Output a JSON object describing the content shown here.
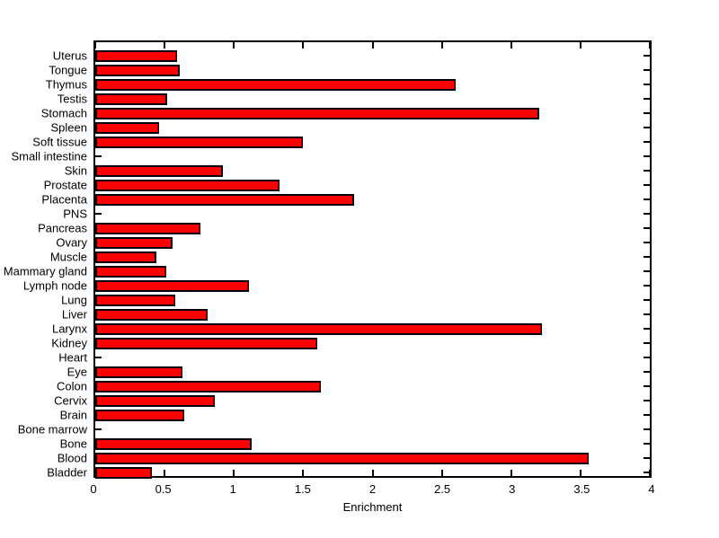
{
  "figure": {
    "background": "#ffffff",
    "bar_fill": "#ff0000",
    "bar_edge": "#000000",
    "axis_color": "#000000",
    "text_color": "#000000"
  },
  "chart_data": {
    "type": "bar",
    "orientation": "horizontal",
    "title": "",
    "xlabel": "Enrichment",
    "ylabel": "",
    "xlim": [
      0,
      4
    ],
    "xtick_values": [
      0,
      0.5,
      1,
      1.5,
      2,
      2.5,
      3,
      3.5,
      4
    ],
    "xtick_labels": [
      "0",
      "0.5",
      "1",
      "1.5",
      "2",
      "2.5",
      "3",
      "3.5",
      "4"
    ],
    "grid": false,
    "legend_position": "none",
    "categories": [
      "Uterus",
      "Tongue",
      "Thymus",
      "Testis",
      "Stomach",
      "Spleen",
      "Soft tissue",
      "Small intestine",
      "Skin",
      "Prostate",
      "Placenta",
      "PNS",
      "Pancreas",
      "Ovary",
      "Muscle",
      "Mammary gland",
      "Lymph node",
      "Lung",
      "Liver",
      "Larynx",
      "Kidney",
      "Heart",
      "Eye",
      "Colon",
      "Cervix",
      "Brain",
      "Bone marrow",
      "Bone",
      "Blood",
      "Bladder"
    ],
    "values": [
      0.59,
      0.61,
      2.6,
      0.52,
      3.2,
      0.46,
      1.5,
      0,
      0.92,
      1.33,
      1.87,
      0,
      0.76,
      0.56,
      0.44,
      0.51,
      1.11,
      0.58,
      0.81,
      3.22,
      1.6,
      0,
      0.63,
      1.63,
      0.86,
      0.64,
      0,
      1.13,
      3.56,
      0.41
    ]
  }
}
